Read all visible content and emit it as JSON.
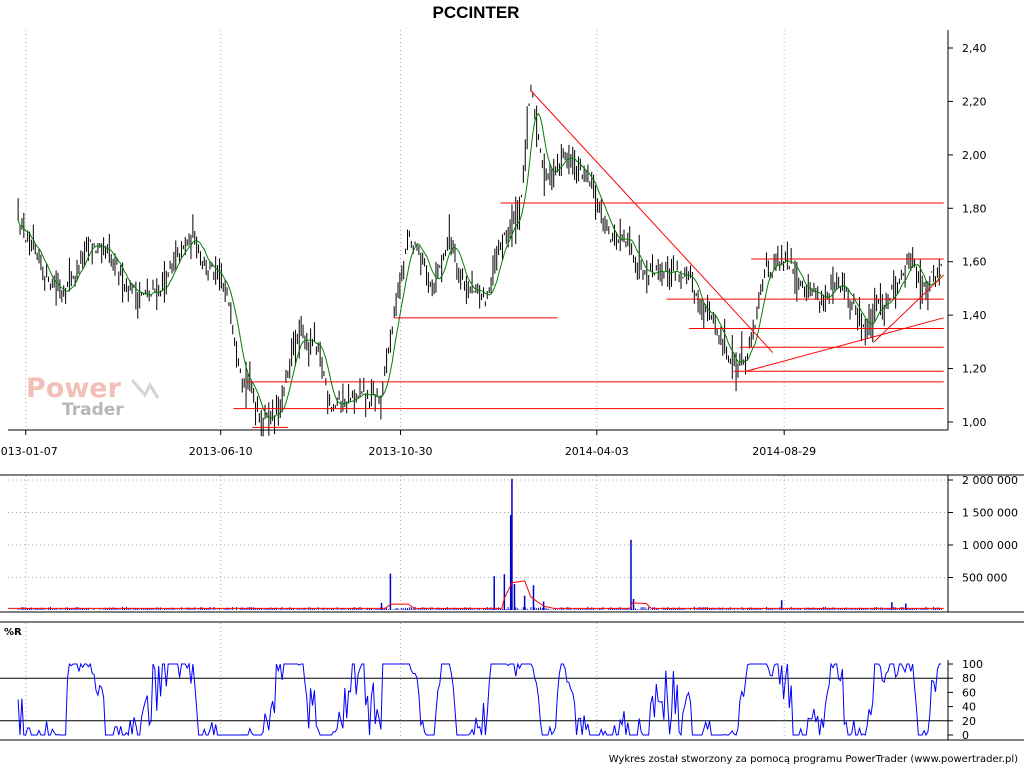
{
  "title": "PCCINTER",
  "footer": "Wykres został stworzony za pomocą programu PowerTrader (www.powertrader.pl)",
  "watermark": {
    "line1": "Power",
    "line2": "Trader"
  },
  "colors": {
    "price_bars": "#000000",
    "moving_average": "#008000",
    "support_lines": "#ff0000",
    "volume_bars": "#0000cc",
    "volume_average": "#ff0000",
    "williams_r": "#0000ff",
    "grid": "#aaaaaa"
  },
  "chart_data": [
    {
      "type": "candlestick-bar",
      "name": "price",
      "title": "PCCINTER",
      "y_ticks": [
        "2,40",
        "2,20",
        "2,00",
        "1,80",
        "1,60",
        "1,40",
        "1,20",
        "1,00"
      ],
      "ylim": [
        0.98,
        2.4
      ],
      "x_ticks": [
        "2013-01-07",
        "2013-06-10",
        "2013-10-30",
        "2014-04-03",
        "2014-08-29"
      ],
      "grid": "vertical dotted",
      "price_path": [
        [
          "2013-01-01",
          1.78
        ],
        [
          "2013-01-15",
          1.58
        ],
        [
          "2013-02-05",
          1.5
        ],
        [
          "2013-03-01",
          1.66
        ],
        [
          "2013-03-20",
          1.55
        ],
        [
          "2013-04-15",
          1.46
        ],
        [
          "2013-05-05",
          1.58
        ],
        [
          "2013-05-20",
          1.7
        ],
        [
          "2013-06-01",
          1.58
        ],
        [
          "2013-06-18",
          1.42
        ],
        [
          "2013-06-28",
          1.2
        ],
        [
          "2013-07-12",
          1.03
        ],
        [
          "2013-07-28",
          1.05
        ],
        [
          "2013-08-08",
          1.3
        ],
        [
          "2013-08-22",
          1.3
        ],
        [
          "2013-09-05",
          1.08
        ],
        [
          "2013-09-25",
          1.08
        ],
        [
          "2013-10-15",
          1.08
        ],
        [
          "2013-10-25",
          1.4
        ],
        [
          "2013-11-05",
          1.68
        ],
        [
          "2013-11-25",
          1.52
        ],
        [
          "2013-12-08",
          1.7
        ],
        [
          "2013-12-22",
          1.5
        ],
        [
          "2014-01-05",
          1.45
        ],
        [
          "2014-01-20",
          1.68
        ],
        [
          "2014-02-01",
          1.8
        ],
        [
          "2014-02-10",
          2.22
        ],
        [
          "2014-02-22",
          1.92
        ],
        [
          "2014-03-10",
          2.0
        ],
        [
          "2014-03-28",
          1.88
        ],
        [
          "2014-04-15",
          1.7
        ],
        [
          "2014-05-08",
          1.6
        ],
        [
          "2014-06-05",
          1.57
        ],
        [
          "2014-06-28",
          1.42
        ],
        [
          "2014-07-12",
          1.3
        ],
        [
          "2014-07-22",
          1.22
        ],
        [
          "2014-08-02",
          1.26
        ],
        [
          "2014-08-15",
          1.58
        ],
        [
          "2014-09-05",
          1.58
        ],
        [
          "2014-09-25",
          1.47
        ],
        [
          "2014-10-15",
          1.48
        ],
        [
          "2014-11-02",
          1.35
        ],
        [
          "2014-11-15",
          1.45
        ],
        [
          "2014-12-01",
          1.56
        ],
        [
          "2014-12-08",
          1.6
        ],
        [
          "2014-12-20",
          1.52
        ],
        [
          "2015-01-01",
          1.58
        ]
      ],
      "horizontal_lines": [
        {
          "from": "2013-07-05",
          "to": "2013-08-02",
          "y": 0.98
        },
        {
          "from": "2013-06-20",
          "to": "2015-01-02",
          "y": 1.05
        },
        {
          "from": "2013-06-30",
          "to": "2015-01-02",
          "y": 1.15
        },
        {
          "from": "2014-07-20",
          "to": "2015-01-02",
          "y": 1.19
        },
        {
          "from": "2014-07-25",
          "to": "2015-01-02",
          "y": 1.28
        },
        {
          "from": "2014-06-15",
          "to": "2015-01-02",
          "y": 1.35
        },
        {
          "from": "2014-05-28",
          "to": "2015-01-02",
          "y": 1.46
        },
        {
          "from": "2013-10-25",
          "to": "2014-03-03",
          "y": 1.39
        },
        {
          "from": "2014-01-17",
          "to": "2015-01-02",
          "y": 1.82
        },
        {
          "from": "2014-08-03",
          "to": "2015-01-02",
          "y": 1.61
        }
      ],
      "trend_lines": [
        {
          "from": [
            "2014-02-10",
            2.24
          ],
          "to": [
            "2014-08-20",
            1.26
          ]
        },
        {
          "from": [
            "2014-07-30",
            1.19
          ],
          "to": [
            "2015-01-02",
            1.39
          ]
        },
        {
          "from": [
            "2014-11-08",
            1.3
          ],
          "to": [
            "2015-01-02",
            1.55
          ]
        }
      ]
    },
    {
      "type": "bar",
      "name": "volume",
      "y_ticks": [
        "2 000 000",
        "1 500 000",
        "1 000 000",
        "500 000"
      ],
      "ylim": [
        0,
        2000000
      ],
      "spikes": [
        {
          "date": "2013-10-22",
          "value": 560000
        },
        {
          "date": "2013-10-15",
          "value": 110000
        },
        {
          "date": "2014-01-12",
          "value": 520000
        },
        {
          "date": "2014-01-20",
          "value": 550000
        },
        {
          "date": "2014-01-25",
          "value": 1460000
        },
        {
          "date": "2014-01-26",
          "value": 2020000
        },
        {
          "date": "2014-01-28",
          "value": 400000
        },
        {
          "date": "2014-02-05",
          "value": 220000
        },
        {
          "date": "2014-02-12",
          "value": 380000
        },
        {
          "date": "2014-02-20",
          "value": 130000
        },
        {
          "date": "2014-04-30",
          "value": 1080000
        },
        {
          "date": "2014-05-02",
          "value": 170000
        },
        {
          "date": "2014-08-27",
          "value": 150000
        },
        {
          "date": "2014-11-22",
          "value": 120000
        },
        {
          "date": "2014-12-03",
          "value": 100000
        }
      ],
      "base_level": 30000
    },
    {
      "type": "line",
      "name": "%R",
      "label": "%R",
      "y_ticks": [
        "100",
        "80",
        "60",
        "40",
        "20",
        "0"
      ],
      "ylim": [
        0,
        100
      ],
      "reference_lines": [
        80,
        20
      ]
    }
  ]
}
